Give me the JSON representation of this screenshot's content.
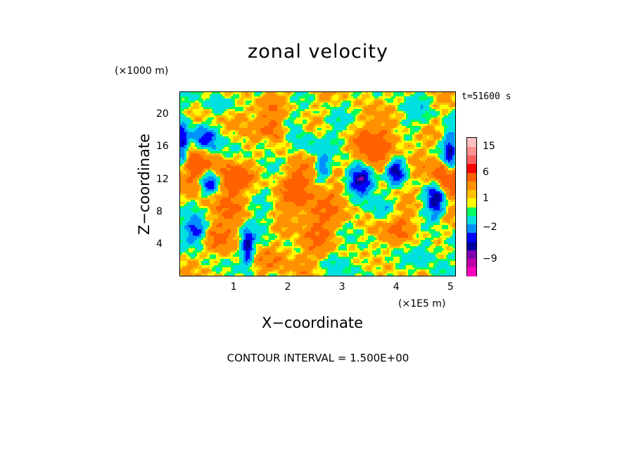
{
  "chart_data": {
    "type": "heatmap",
    "title": "zonal velocity",
    "xlabel": "X−coordinate",
    "ylabel": "Z−coordinate",
    "x_unit": "(×1E5 m)",
    "y_unit": "(×1000 m)",
    "time_label": "t=51600 s",
    "footer": "CONTOUR INTERVAL = 1.500E+00",
    "xlim": [
      0,
      5.1
    ],
    "ylim": [
      0,
      22.8
    ],
    "x_ticks": [
      "1",
      "2",
      "3",
      "4",
      "5"
    ],
    "x_tick_values": [
      1,
      2,
      3,
      4,
      5
    ],
    "y_ticks": [
      "4",
      "8",
      "12",
      "16",
      "20"
    ],
    "y_tick_values": [
      4,
      8,
      12,
      16,
      20
    ],
    "colorbar": {
      "min": -15,
      "max": 18,
      "labels": [
        "15",
        "6",
        "1",
        "−2",
        "−9"
      ],
      "label_values": [
        15,
        6,
        1,
        -2,
        -9
      ],
      "levels": [
        {
          "lo": -15,
          "hi": -12,
          "color": "#ff00c0"
        },
        {
          "lo": -12,
          "hi": -9,
          "color": "#c000a8"
        },
        {
          "lo": -9,
          "hi": -6,
          "color": "#8000b0"
        },
        {
          "lo": -6,
          "hi": -4.5,
          "color": "#0000a0"
        },
        {
          "lo": -4.5,
          "hi": -3,
          "color": "#0000ff"
        },
        {
          "lo": -3,
          "hi": -1.5,
          "color": "#0090ff"
        },
        {
          "lo": -1.5,
          "hi": 0,
          "color": "#00e0e0"
        },
        {
          "lo": 0,
          "hi": 0.5,
          "color": "#00ff60"
        },
        {
          "lo": 0.5,
          "hi": 1,
          "color": "#ffff00"
        },
        {
          "lo": 1,
          "hi": 1.5,
          "color": "#ffc000"
        },
        {
          "lo": 1.5,
          "hi": 3,
          "color": "#ff9000"
        },
        {
          "lo": 3,
          "hi": 6,
          "color": "#ff6000"
        },
        {
          "lo": 6,
          "hi": 9,
          "color": "#ff0000"
        },
        {
          "lo": 9,
          "hi": 12,
          "color": "#ff6060"
        },
        {
          "lo": 12,
          "hi": 15,
          "color": "#ff9090"
        },
        {
          "lo": 15,
          "hi": 18,
          "color": "#ffc0c0"
        }
      ]
    },
    "features": [
      {
        "x": 3.35,
        "z": 12.0,
        "sx": 0.18,
        "sz": 1.3,
        "amp": -8
      },
      {
        "x": 4.75,
        "z": 9.5,
        "sx": 0.12,
        "sz": 1.6,
        "amp": -7
      },
      {
        "x": 0.55,
        "z": 11.5,
        "sx": 0.12,
        "sz": 1.0,
        "amp": -6
      },
      {
        "x": 1.25,
        "z": 3.5,
        "sx": 0.08,
        "sz": 1.5,
        "amp": -6
      },
      {
        "x": 0.3,
        "z": 5.5,
        "sx": 0.15,
        "sz": 1.2,
        "amp": -6
      },
      {
        "x": 0.45,
        "z": 17.0,
        "sx": 0.18,
        "sz": 1.2,
        "amp": -5
      },
      {
        "x": 4.0,
        "z": 13.0,
        "sx": 0.12,
        "sz": 1.2,
        "amp": -6
      },
      {
        "x": 1.6,
        "z": 16.5,
        "sx": 0.15,
        "sz": 0.9,
        "amp": -4
      },
      {
        "x": 0.05,
        "z": 16.0,
        "sx": 0.08,
        "sz": 2.0,
        "amp": -6
      },
      {
        "x": 5.0,
        "z": 15.0,
        "sx": 0.08,
        "sz": 2.0,
        "amp": -5
      },
      {
        "x": 2.65,
        "z": 13.5,
        "sx": 0.08,
        "sz": 1.0,
        "amp": -4
      },
      {
        "x": 3.6,
        "z": 15.5,
        "sx": 0.25,
        "sz": 2.5,
        "amp": 4
      },
      {
        "x": 0.3,
        "z": 13.5,
        "sx": 0.25,
        "sz": 2.0,
        "amp": 4
      },
      {
        "x": 4.9,
        "z": 12.0,
        "sx": 0.2,
        "sz": 1.5,
        "amp": 6
      },
      {
        "x": 1.7,
        "z": 17.5,
        "sx": 0.2,
        "sz": 1.5,
        "amp": 4
      },
      {
        "x": 1.0,
        "z": 12.0,
        "sx": 0.2,
        "sz": 1.2,
        "amp": 4
      },
      {
        "x": 2.2,
        "z": 9.0,
        "sx": 0.3,
        "sz": 3.0,
        "amp": 2
      },
      {
        "x": 2.3,
        "z": 12.0,
        "sx": 0.2,
        "sz": 1.5,
        "amp": 1.5
      },
      {
        "x": 4.1,
        "z": 6.0,
        "sx": 0.3,
        "sz": 1.5,
        "amp": 2.5
      },
      {
        "x": 0.7,
        "z": 5.0,
        "sx": 0.3,
        "sz": 1.5,
        "amp": 2.5
      },
      {
        "x": 1.9,
        "z": 2.0,
        "sx": 0.3,
        "sz": 1.2,
        "amp": 2
      },
      {
        "x": 2.6,
        "z": 6.0,
        "sx": 0.25,
        "sz": 2.0,
        "amp": 1.8
      },
      {
        "x": 0.9,
        "z": 8.5,
        "sx": 0.2,
        "sz": 1.5,
        "amp": 2
      },
      {
        "x": 1.1,
        "z": 19.5,
        "sx": 0.2,
        "sz": 1.0,
        "amp": 2
      },
      {
        "x": 1.9,
        "z": 21.5,
        "sx": 0.4,
        "sz": 1.2,
        "amp": 0.8
      },
      {
        "x": 2.0,
        "z": 19.0,
        "sx": 0.25,
        "sz": 1.0,
        "amp": -0.6
      },
      {
        "x": 2.8,
        "z": 18.5,
        "sx": 0.3,
        "sz": 1.5,
        "amp": -0.8
      },
      {
        "x": 4.4,
        "z": 19.0,
        "sx": 0.3,
        "sz": 2.0,
        "amp": -1
      },
      {
        "x": 3.2,
        "z": 1.5,
        "sx": 0.3,
        "sz": 1.2,
        "amp": -0.8
      },
      {
        "x": 1.6,
        "z": 6.0,
        "sx": 0.2,
        "sz": 1.5,
        "amp": -1.5
      },
      {
        "x": 4.6,
        "z": 3.0,
        "sx": 0.2,
        "sz": 1.5,
        "amp": -2
      },
      {
        "x": 3.8,
        "z": 8.0,
        "sx": 0.15,
        "sz": 1.5,
        "amp": -2
      },
      {
        "x": 2.3,
        "z": 16.0,
        "sx": 0.2,
        "sz": 1.0,
        "amp": -2
      },
      {
        "x": 0.8,
        "z": 21.5,
        "sx": 0.2,
        "sz": 1.0,
        "amp": -1.5
      },
      {
        "x": 4.2,
        "z": 17.0,
        "sx": 0.3,
        "sz": 1.2,
        "amp": 1.2
      },
      {
        "x": 2.9,
        "z": 10.0,
        "sx": 0.3,
        "sz": 1.5,
        "amp": 1.2
      }
    ]
  }
}
